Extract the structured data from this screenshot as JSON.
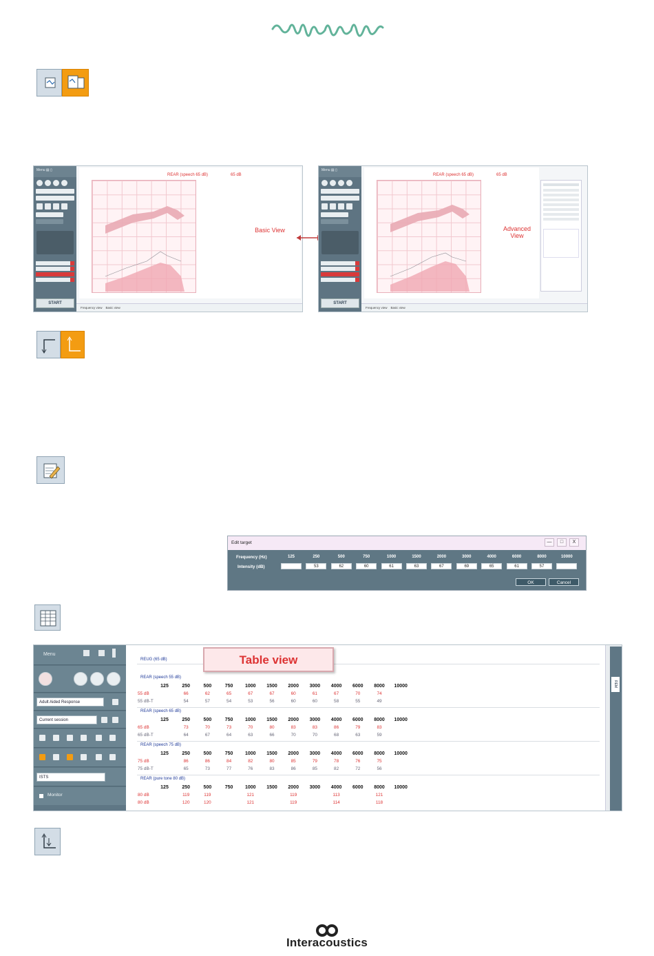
{
  "basic_shot": {
    "title": "REAR (speech 65 dB)",
    "level": "65 dB",
    "callout": "Basic View",
    "radio1": "Frequency view",
    "radio2": "Basic view",
    "start": "START"
  },
  "advanced_shot": {
    "title": "REAR (speech 65 dB)",
    "level": "65 dB",
    "callout_line1": "Advanced",
    "callout_line2": "View",
    "radio1": "Frequency view",
    "radio2": "Basic view",
    "start": "START"
  },
  "edit_target": {
    "title": "Edit target",
    "min": "—",
    "max": "□",
    "close": "X",
    "freq_label": "Frequency (Hz)",
    "intensity_label": "Intensity (dB)",
    "frequencies": [
      "125",
      "250",
      "500",
      "750",
      "1000",
      "1500",
      "2000",
      "3000",
      "4000",
      "6000",
      "8000",
      "10000"
    ],
    "intensities": [
      "",
      "53",
      "62",
      "60",
      "61",
      "63",
      "67",
      "69",
      "65",
      "61",
      "57",
      ""
    ],
    "ok": "OK",
    "cancel": "Cancel"
  },
  "table_view": {
    "label": "Table view",
    "menu": "Menu",
    "response_select": "Adult Aided Response",
    "session_select": "Current session",
    "stimulus_select": "ISTS",
    "monitor": "Monitor",
    "reug": "REUG (65 dB)",
    "side_tab": "REM",
    "sections": [
      {
        "title": "REAR (speech 55 dB)",
        "freqs": [
          "125",
          "250",
          "500",
          "750",
          "1000",
          "1500",
          "2000",
          "3000",
          "4000",
          "6000",
          "8000",
          "10000"
        ],
        "rows": [
          {
            "label": "55 dB",
            "style": "red",
            "values": [
              "",
              "66",
              "62",
              "65",
              "67",
              "67",
              "60",
              "61",
              "67",
              "70",
              "74",
              ""
            ]
          },
          {
            "label": "55 dB-T",
            "style": "gry",
            "values": [
              "",
              "54",
              "57",
              "54",
              "53",
              "56",
              "60",
              "60",
              "58",
              "55",
              "49",
              ""
            ]
          }
        ]
      },
      {
        "title": "REAR (speech 65 dB)",
        "freqs": [
          "125",
          "250",
          "500",
          "750",
          "1000",
          "1500",
          "2000",
          "3000",
          "4000",
          "6000",
          "8000",
          "10000"
        ],
        "rows": [
          {
            "label": "65 dB",
            "style": "red",
            "values": [
              "",
              "73",
              "70",
              "73",
              "70",
              "80",
              "83",
              "83",
              "86",
              "79",
              "83",
              ""
            ]
          },
          {
            "label": "65 dB-T",
            "style": "gry",
            "values": [
              "",
              "64",
              "67",
              "64",
              "63",
              "66",
              "70",
              "70",
              "68",
              "63",
              "59",
              ""
            ]
          }
        ]
      },
      {
        "title": "REAR (speech 75 dB)",
        "freqs": [
          "125",
          "250",
          "500",
          "750",
          "1000",
          "1500",
          "2000",
          "3000",
          "4000",
          "6000",
          "8000",
          "10000"
        ],
        "rows": [
          {
            "label": "75 dB",
            "style": "red",
            "values": [
              "",
              "86",
              "86",
              "84",
              "82",
              "80",
              "85",
              "79",
              "78",
              "76",
              "75",
              ""
            ]
          },
          {
            "label": "75 dB-T",
            "style": "gry",
            "values": [
              "",
              "65",
              "73",
              "77",
              "76",
              "83",
              "86",
              "85",
              "82",
              "72",
              "56",
              ""
            ]
          }
        ]
      },
      {
        "title": "REAR (pure tone 80 dB)",
        "freqs": [
          "125",
          "250",
          "500",
          "750",
          "1000",
          "1500",
          "2000",
          "3000",
          "4000",
          "6000",
          "8000",
          "10000"
        ],
        "rows": [
          {
            "label": "80 dB",
            "style": "red",
            "values": [
              "",
              "119",
              "119",
              "",
              "121",
              "",
              "119",
              "",
              "113",
              "",
              "121",
              ""
            ]
          },
          {
            "label": "80 dB",
            "style": "red",
            "values": [
              "",
              "120",
              "120",
              "",
              "121",
              "",
              "119",
              "",
              "114",
              "",
              "118",
              ""
            ]
          }
        ]
      }
    ]
  },
  "footer": {
    "brand": "Interacoustics"
  },
  "colors": {
    "accent": "#f39c12",
    "target_red": "#d33333",
    "panel": "#5f7785",
    "logo_wave": "#62b39a"
  }
}
